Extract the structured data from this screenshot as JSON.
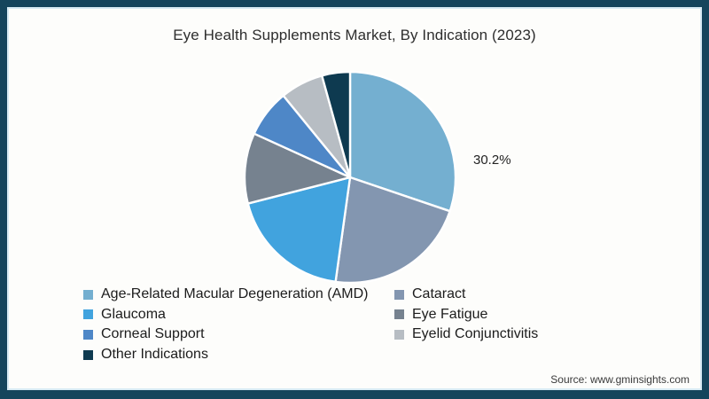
{
  "title": "Eye Health Supplements Market, By Indication (2023)",
  "source": "Source: www.gminsights.com",
  "frame": {
    "border_color": "#15455c",
    "inner_accent_color": "#d8ebf4",
    "background": "#fdfdfb"
  },
  "chart_data": {
    "type": "pie",
    "title": "Eye Health Supplements Market, By Indication (2023)",
    "unit": "%",
    "start_angle_deg": 0,
    "direction": "clockwise",
    "legend_position": "bottom",
    "slices": [
      {
        "label": "Age-Related Macular Degeneration (AMD)",
        "value": 30.2,
        "color": "#74afd0"
      },
      {
        "label": "Cataract",
        "value": 22.0,
        "color": "#8396b0"
      },
      {
        "label": "Glaucoma",
        "value": 18.8,
        "color": "#41a3de"
      },
      {
        "label": "Eye Fatigue",
        "value": 10.8,
        "color": "#76828f"
      },
      {
        "label": "Corneal Support",
        "value": 7.3,
        "color": "#4e87c7"
      },
      {
        "label": "Eyelid Conjunctivitis",
        "value": 6.6,
        "color": "#b7bdc3"
      },
      {
        "label": "Other Indications",
        "value": 4.3,
        "color": "#0e3a50"
      }
    ],
    "callout": {
      "text": "30.2%",
      "slice": "Age-Related Macular Degeneration (AMD)"
    },
    "legend_columns": [
      [
        0,
        2,
        4,
        6
      ],
      [
        1,
        3,
        5
      ]
    ]
  }
}
